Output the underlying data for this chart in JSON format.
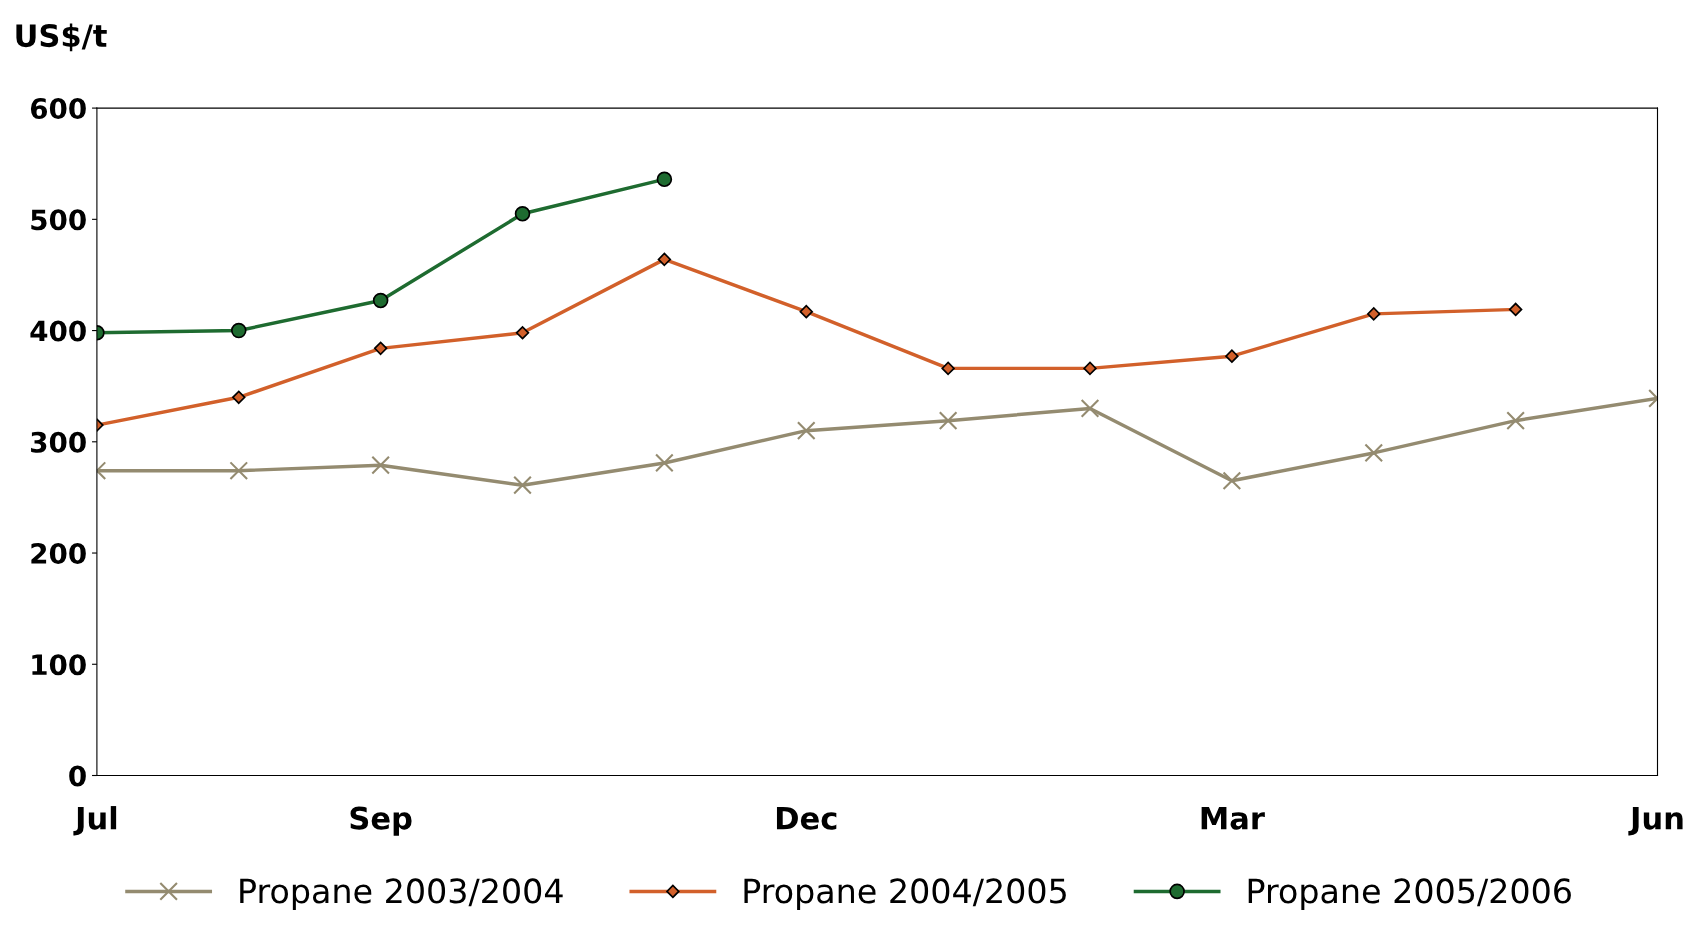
{
  "chart_data": {
    "type": "line",
    "ylabel": "US$/t",
    "categories": [
      "Jul",
      null,
      "Sep",
      null,
      null,
      "Dec",
      null,
      null,
      "Mar",
      null,
      null,
      "Jun"
    ],
    "ylim": [
      0,
      600
    ],
    "yticks": [
      0,
      100,
      200,
      300,
      400,
      500,
      600
    ],
    "grid": false,
    "legend": "bottom",
    "series": [
      {
        "name": "Propane 2003/2004",
        "color": "#948b70",
        "marker": "cross",
        "values": [
          274,
          274,
          279,
          261,
          281,
          310,
          319,
          330,
          265,
          290,
          319,
          339
        ]
      },
      {
        "name": "Propane 2004/2005",
        "color": "#d2602a",
        "marker": "diamond",
        "values": [
          315,
          340,
          384,
          398,
          464,
          417,
          366,
          366,
          377,
          415,
          419,
          null
        ]
      },
      {
        "name": "Propane 2005/2006",
        "color": "#1e6b30",
        "marker": "circle",
        "values": [
          398,
          400,
          427,
          505,
          536,
          null,
          null,
          null,
          null,
          null,
          null,
          null
        ]
      }
    ]
  }
}
